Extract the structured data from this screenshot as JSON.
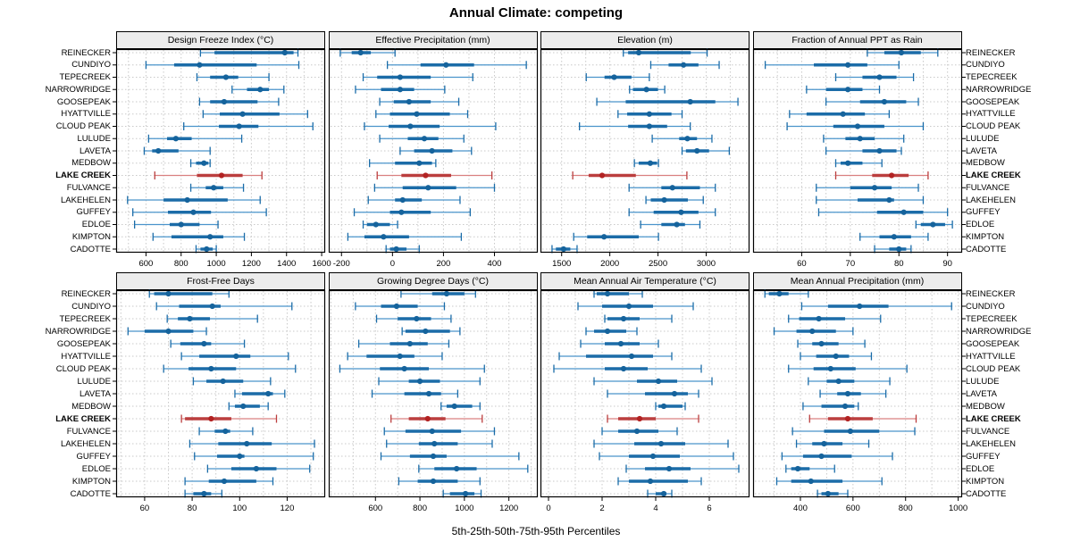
{
  "title": "Annual Climate: competing",
  "caption": "5th-25th-50th-75th-95th Percentiles",
  "highlight_site": "LAKE CREEK",
  "colors": {
    "blue_light": "#4a94cb",
    "blue_main": "#1b6ca8",
    "blue_dot": "#15639c",
    "red_light": "#d98080",
    "red_main": "#bb3e3e",
    "red_dot": "#b22222",
    "grid": "#c9c9c9",
    "border": "#000000",
    "strip_bg": "#ececec"
  },
  "chart_data": {
    "type": "table",
    "subtype": "percentile-interval-dotplot",
    "percentiles": [
      5,
      25,
      50,
      75,
      95
    ],
    "sites": [
      "REINECKER",
      "CUNDIYO",
      "TEPECREEK",
      "NARROWRIDGE",
      "GOOSEPEAK",
      "HYATTVILLE",
      "CLOUD PEAK",
      "LULUDE",
      "LAVETA",
      "MEDBOW",
      "LAKE CREEK",
      "FULVANCE",
      "LAKEHELEN",
      "GUFFEY",
      "EDLOE",
      "KIMPTON",
      "CADOTTE"
    ],
    "panels": [
      {
        "title": "Design Freeze Index (°C)",
        "xlim": [
          430,
          1620
        ],
        "ticks": [
          600,
          800,
          1000,
          1200,
          1400,
          1600
        ],
        "values": [
          [
            910,
            990,
            1390,
            1440,
            1465
          ],
          [
            600,
            760,
            905,
            1230,
            1470
          ],
          [
            890,
            965,
            1055,
            1125,
            1300
          ],
          [
            1090,
            1175,
            1250,
            1300,
            1385
          ],
          [
            905,
            965,
            1045,
            1235,
            1355
          ],
          [
            925,
            1020,
            1150,
            1360,
            1520
          ],
          [
            815,
            1015,
            1130,
            1240,
            1550
          ],
          [
            615,
            720,
            770,
            860,
            1145
          ],
          [
            590,
            635,
            670,
            785,
            965
          ],
          [
            855,
            885,
            930,
            955,
            965
          ],
          [
            650,
            890,
            1030,
            1150,
            1260
          ],
          [
            855,
            940,
            985,
            1040,
            1155
          ],
          [
            495,
            700,
            835,
            1065,
            1250
          ],
          [
            525,
            725,
            870,
            970,
            1285
          ],
          [
            535,
            735,
            800,
            905,
            1010
          ],
          [
            640,
            745,
            965,
            1040,
            1160
          ],
          [
            885,
            910,
            945,
            980,
            1000
          ]
        ]
      },
      {
        "title": "Effective Precipitation (mm)",
        "xlim": [
          -250,
          570
        ],
        "ticks": [
          -200,
          0,
          200,
          400
        ],
        "values": [
          [
            -205,
            -160,
            -125,
            -85,
            10
          ],
          [
            -20,
            110,
            210,
            320,
            525
          ],
          [
            -115,
            -60,
            30,
            150,
            315
          ],
          [
            -145,
            -45,
            30,
            85,
            205
          ],
          [
            -50,
            5,
            65,
            150,
            260
          ],
          [
            -65,
            -10,
            95,
            225,
            295
          ],
          [
            -110,
            -15,
            70,
            185,
            405
          ],
          [
            -50,
            60,
            125,
            180,
            280
          ],
          [
            30,
            85,
            155,
            235,
            310
          ],
          [
            -90,
            10,
            105,
            155,
            170
          ],
          [
            -60,
            35,
            130,
            230,
            390
          ],
          [
            -70,
            40,
            140,
            250,
            400
          ],
          [
            -95,
            10,
            40,
            115,
            265
          ],
          [
            -150,
            -10,
            35,
            150,
            305
          ],
          [
            -115,
            -100,
            -65,
            -10,
            20
          ],
          [
            -175,
            -110,
            -35,
            65,
            270
          ],
          [
            -25,
            -10,
            15,
            55,
            105
          ]
        ]
      },
      {
        "title": "Elevation (m)",
        "xlim": [
          1280,
          3450
        ],
        "ticks": [
          1500,
          2000,
          2500,
          3000
        ],
        "values": [
          [
            2140,
            2190,
            2300,
            2840,
            3010
          ],
          [
            2425,
            2610,
            2765,
            2920,
            3135
          ],
          [
            1755,
            1945,
            2045,
            2225,
            2410
          ],
          [
            2205,
            2240,
            2380,
            2500,
            2570
          ],
          [
            1865,
            2165,
            2835,
            3095,
            3330
          ],
          [
            2085,
            2180,
            2410,
            2640,
            2750
          ],
          [
            1685,
            2190,
            2410,
            2595,
            2835
          ],
          [
            2440,
            2720,
            2805,
            2905,
            3060
          ],
          [
            2750,
            2790,
            2905,
            3030,
            3240
          ],
          [
            2255,
            2300,
            2420,
            2490,
            2505
          ],
          [
            1615,
            1780,
            1920,
            2270,
            2800
          ],
          [
            2200,
            2535,
            2650,
            2935,
            3095
          ],
          [
            2375,
            2425,
            2565,
            2810,
            2970
          ],
          [
            2200,
            2455,
            2740,
            2920,
            3095
          ],
          [
            2320,
            2535,
            2695,
            2780,
            2935
          ],
          [
            1625,
            1765,
            1940,
            2300,
            2505
          ],
          [
            1400,
            1440,
            1520,
            1590,
            1660
          ]
        ]
      },
      {
        "title": "Fraction of Annual PPT as Rain",
        "xlim": [
          50,
          93
        ],
        "ticks": [
          60,
          70,
          80,
          90
        ],
        "values": [
          [
            73.5,
            77,
            80.5,
            84.5,
            88
          ],
          [
            52.5,
            62.5,
            69.5,
            73.5,
            80
          ],
          [
            67,
            72.5,
            76,
            79.5,
            83
          ],
          [
            61,
            65,
            69.5,
            72.5,
            76
          ],
          [
            65,
            72,
            77,
            81.5,
            84
          ],
          [
            57.5,
            61,
            68.5,
            73,
            78
          ],
          [
            57,
            66.5,
            71.5,
            77,
            85
          ],
          [
            64.5,
            69,
            72,
            75,
            81
          ],
          [
            65,
            72.5,
            76,
            79.5,
            80.5
          ],
          [
            67,
            68,
            69.5,
            72.5,
            76.5
          ],
          [
            67,
            74.5,
            78.5,
            82,
            86
          ],
          [
            63,
            70,
            75,
            78.5,
            84
          ],
          [
            63,
            71.5,
            78,
            79,
            85
          ],
          [
            63.5,
            75.5,
            81,
            85,
            90
          ],
          [
            83.5,
            84.5,
            87,
            89.5,
            91
          ],
          [
            72,
            76,
            79,
            82.5,
            86
          ],
          [
            75,
            78,
            80,
            81.5,
            82.5
          ]
        ]
      },
      {
        "title": "Frost-Free Days",
        "xlim": [
          48,
          136
        ],
        "ticks": [
          60,
          80,
          100,
          120
        ],
        "values": [
          [
            62,
            64,
            70,
            88.5,
            95.5
          ],
          [
            65,
            74.5,
            88.5,
            92,
            122
          ],
          [
            69.5,
            74,
            79,
            87.5,
            107.5
          ],
          [
            53,
            60,
            70,
            80.5,
            86
          ],
          [
            71,
            75,
            85,
            88,
            102
          ],
          [
            75.5,
            83,
            98.5,
            104.5,
            120.5
          ],
          [
            68,
            78.5,
            88,
            98.5,
            123.5
          ],
          [
            80.5,
            86,
            93,
            101.5,
            113
          ],
          [
            98,
            101,
            112,
            114,
            119
          ],
          [
            95.5,
            98,
            101.5,
            108.5,
            112
          ],
          [
            75.5,
            77,
            88,
            96.5,
            115.5
          ],
          [
            83,
            89.5,
            94,
            96,
            105.5
          ],
          [
            79,
            91,
            103,
            113.5,
            131.5
          ],
          [
            81,
            90.5,
            100,
            102,
            131
          ],
          [
            86.5,
            96.5,
            107,
            115.5,
            129.5
          ],
          [
            77,
            87,
            93.5,
            107,
            114
          ],
          [
            77,
            80.5,
            85,
            88,
            92.5
          ]
        ]
      },
      {
        "title": "Growing Degree Days (°C)",
        "xlim": [
          390,
          1330
        ],
        "ticks": [
          600,
          800,
          1000,
          1200
        ],
        "values": [
          [
            715,
            855,
            920,
            1000,
            1050
          ],
          [
            510,
            625,
            695,
            790,
            910
          ],
          [
            605,
            700,
            785,
            850,
            940
          ],
          [
            720,
            735,
            825,
            935,
            980
          ],
          [
            525,
            665,
            755,
            835,
            930
          ],
          [
            475,
            560,
            710,
            775,
            900
          ],
          [
            440,
            620,
            730,
            840,
            1090
          ],
          [
            615,
            750,
            800,
            890,
            1070
          ],
          [
            585,
            730,
            840,
            895,
            970
          ],
          [
            895,
            920,
            955,
            1035,
            1070
          ],
          [
            670,
            750,
            835,
            915,
            1080
          ],
          [
            640,
            735,
            855,
            985,
            1135
          ],
          [
            650,
            795,
            865,
            970,
            1125
          ],
          [
            625,
            755,
            860,
            920,
            1245
          ],
          [
            795,
            865,
            965,
            1055,
            1285
          ],
          [
            705,
            790,
            860,
            970,
            1070
          ],
          [
            905,
            935,
            1005,
            1045,
            1075
          ]
        ]
      },
      {
        "title": "Mean Annual Air Temperature (°C)",
        "xlim": [
          -0.3,
          7.5
        ],
        "ticks": [
          0,
          2,
          4,
          6
        ],
        "values": [
          [
            1.7,
            1.8,
            2.2,
            3.0,
            3.5
          ],
          [
            1.1,
            2.0,
            3.0,
            3.9,
            5.4
          ],
          [
            2.1,
            2.2,
            2.8,
            3.4,
            4.6
          ],
          [
            1.4,
            1.7,
            2.2,
            2.9,
            3.3
          ],
          [
            1.2,
            2.1,
            2.7,
            3.4,
            4.1
          ],
          [
            0.4,
            1.4,
            3.1,
            3.9,
            4.6
          ],
          [
            0.2,
            2.1,
            2.8,
            3.7,
            5.7
          ],
          [
            1.7,
            3.3,
            4.1,
            4.8,
            6.1
          ],
          [
            2.2,
            3.6,
            4.7,
            5.2,
            5.6
          ],
          [
            4.0,
            4.1,
            4.3,
            5.0,
            5.1
          ],
          [
            2.2,
            2.6,
            3.4,
            4.0,
            5.6
          ],
          [
            2.0,
            2.6,
            3.3,
            4.1,
            4.8
          ],
          [
            1.7,
            3.2,
            4.2,
            5.1,
            6.7
          ],
          [
            1.9,
            3.0,
            3.9,
            4.9,
            6.9
          ],
          [
            2.9,
            3.6,
            4.5,
            5.3,
            7.1
          ],
          [
            2.6,
            3.0,
            3.8,
            5.2,
            5.7
          ],
          [
            3.7,
            4.0,
            4.3,
            4.4,
            4.6
          ]
        ]
      },
      {
        "title": "Mean Annual Precipitation (mm)",
        "xlim": [
          220,
          1015
        ],
        "ticks": [
          400,
          600,
          800,
          1000
        ],
        "values": [
          [
            265,
            280,
            320,
            355,
            430
          ],
          [
            405,
            505,
            625,
            735,
            975
          ],
          [
            355,
            395,
            470,
            570,
            705
          ],
          [
            300,
            385,
            445,
            535,
            600
          ],
          [
            390,
            445,
            480,
            545,
            645
          ],
          [
            400,
            460,
            535,
            585,
            670
          ],
          [
            355,
            450,
            515,
            610,
            805
          ],
          [
            430,
            500,
            545,
            605,
            740
          ],
          [
            475,
            540,
            580,
            630,
            725
          ],
          [
            410,
            480,
            570,
            605,
            620
          ],
          [
            435,
            505,
            580,
            675,
            840
          ],
          [
            370,
            490,
            590,
            700,
            835
          ],
          [
            385,
            445,
            490,
            560,
            660
          ],
          [
            330,
            410,
            480,
            595,
            750
          ],
          [
            345,
            365,
            390,
            435,
            530
          ],
          [
            310,
            365,
            440,
            560,
            710
          ],
          [
            465,
            480,
            505,
            545,
            580
          ]
        ]
      }
    ]
  }
}
